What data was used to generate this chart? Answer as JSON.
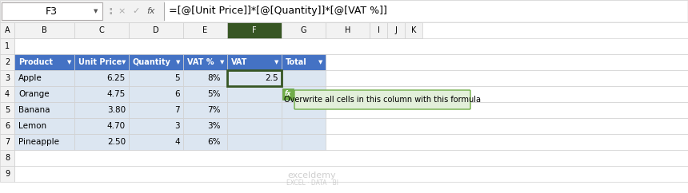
{
  "formula_bar_cell": "F3",
  "formula_bar_formula": "=[@[Unit Price]]*[@[Quantity]]*[@[VAT %]]",
  "col_headers": [
    "A",
    "B",
    "C",
    "D",
    "E",
    "F",
    "G",
    "H",
    "I",
    "J",
    "K"
  ],
  "row_headers": [
    "1",
    "2",
    "3",
    "4",
    "5",
    "6",
    "7",
    "8",
    "9"
  ],
  "table_headers": [
    "Product",
    "Unit Price",
    "Quantity",
    "VAT %",
    "VAT",
    "Total"
  ],
  "table_data": [
    [
      "Apple",
      "6.25",
      "5",
      "8%",
      "2.5",
      ""
    ],
    [
      "Orange",
      "4.75",
      "6",
      "5%",
      "",
      ""
    ],
    [
      "Banana",
      "3.80",
      "7",
      "7%",
      "",
      ""
    ],
    [
      "Lemon",
      "4.70",
      "3",
      "3%",
      "",
      ""
    ],
    [
      "Pineapple",
      "2.50",
      "4",
      "6%",
      "",
      ""
    ]
  ],
  "header_bg": "#4472C4",
  "header_text": "#FFFFFF",
  "row_bg": "#DCE6F1",
  "active_col_header_bg": "#375623",
  "active_col_header_text": "#FFFFFF",
  "active_cell_outline": "#375623",
  "tooltip_bg": "#E2EFDA",
  "tooltip_border": "#70AD47",
  "tooltip_text": "Overwrite all cells in this column with this formula",
  "autocorrect_icon_bg": "#70AD47",
  "col_header_bg": "#F2F2F2",
  "row_header_bg": "#F2F2F2",
  "grid_color": "#D0D0D0",
  "fig_bg": "#FFFFFF",
  "watermark_line1": "exceldemy",
  "watermark_line2": "EXCEL · DATA · BI"
}
